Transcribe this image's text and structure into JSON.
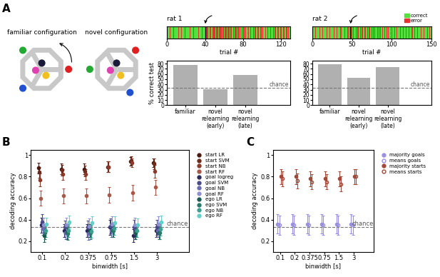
{
  "panel_labels": [
    "A",
    "B",
    "C"
  ],
  "diagrams": [
    {
      "label": "familiar configuration"
    },
    {
      "label": "novel configuration"
    }
  ],
  "chart_data": [
    {
      "type": "raster",
      "title": "rat 1",
      "x_label": "trial #",
      "n_trials": 130,
      "switch_trial": 40,
      "split_trial": 85,
      "error_trials": [
        3,
        7,
        12,
        15,
        19,
        24,
        28,
        33,
        37,
        41,
        42,
        43,
        45,
        46,
        48,
        49,
        50,
        52,
        53,
        55,
        56,
        57,
        59,
        61,
        62,
        64,
        65,
        67,
        68,
        70,
        72,
        73,
        75,
        77,
        79,
        81,
        83,
        86,
        88,
        91,
        93,
        96,
        99,
        101,
        104,
        106,
        109,
        112,
        114,
        117,
        120,
        123,
        126,
        128
      ],
      "xlim": [
        0,
        130
      ],
      "xticks": [
        0,
        40,
        80,
        120
      ],
      "series": [
        {
          "name": "correct",
          "color": "#55e040"
        },
        {
          "name": "error",
          "color": "#e83030"
        }
      ]
    },
    {
      "type": "raster",
      "title": "rat 2",
      "x_label": "trial #",
      "n_trials": 150,
      "switch_trial": 48,
      "split_trial": 98,
      "error_trials": [
        4,
        9,
        13,
        18,
        22,
        27,
        31,
        36,
        41,
        45,
        49,
        50,
        52,
        55,
        57,
        58,
        61,
        63,
        66,
        67,
        70,
        72,
        75,
        77,
        79,
        82,
        84,
        86,
        89,
        91,
        94,
        96,
        100,
        104,
        107,
        111,
        115,
        118,
        122,
        126,
        129,
        133,
        137,
        141,
        145,
        148
      ],
      "xlim": [
        0,
        150
      ],
      "xticks": [
        0,
        50,
        100,
        150
      ],
      "legend": "lower right",
      "series": [
        {
          "name": "correct",
          "color": "#55e040"
        },
        {
          "name": "error",
          "color": "#e83030"
        }
      ]
    },
    {
      "type": "bar",
      "y_label": "% correct test",
      "categories": [
        "familiar",
        "novel relearning (early)",
        "novel relearning (late)"
      ],
      "values": [
        77,
        31,
        58
      ],
      "color": "#b0b0b0",
      "ylim": [
        0,
        85
      ],
      "yticks": [
        0,
        10,
        20,
        30,
        40,
        50,
        60,
        70,
        80
      ],
      "reference_line": {
        "value": 33.3,
        "label": "chance"
      }
    },
    {
      "type": "bar",
      "categories": [
        "familiar",
        "novel relearning (early)",
        "novel relearning (late)"
      ],
      "values": [
        78,
        52,
        73
      ],
      "color": "#b0b0b0",
      "ylim": [
        0,
        85
      ],
      "yticks": [
        0,
        10,
        20,
        30,
        40,
        50,
        60,
        70,
        80
      ],
      "reference_line": {
        "value": 33.3,
        "label": "chance"
      }
    },
    {
      "type": "scatter",
      "x_label": "binwidth [s]",
      "y_label": "decoding accuracy",
      "categories": [
        "0.1",
        "0.2",
        "0.375",
        "0.75",
        "1.5",
        "3"
      ],
      "ylim": [
        0.1,
        1.05
      ],
      "yticks": [
        0.2,
        0.4,
        0.6,
        0.8,
        1
      ],
      "legend": "upper left",
      "reference_line": {
        "value": 0.33,
        "label": "chance"
      },
      "series": [
        {
          "name": "start LR",
          "color": "#4a1a10",
          "marker": "filled_circle",
          "values": [
            0.88,
            0.87,
            0.87,
            0.89,
            0.94,
            0.93
          ],
          "errors": [
            0.05,
            0.05,
            0.05,
            0.05,
            0.04,
            0.04
          ]
        },
        {
          "name": "start SVM",
          "color": "#6e2a1a",
          "marker": "filled_circle",
          "values": [
            0.84,
            0.86,
            0.85,
            0.89,
            0.95,
            0.92
          ],
          "errors": [
            0.05,
            0.05,
            0.05,
            0.05,
            0.04,
            0.05
          ]
        },
        {
          "name": "start NB",
          "color": "#8b3a2a",
          "marker": "filled_circle",
          "values": [
            0.77,
            0.82,
            0.82,
            0.89,
            0.93,
            0.85
          ],
          "errors": [
            0.06,
            0.05,
            0.05,
            0.05,
            0.04,
            0.06
          ]
        },
        {
          "name": "start RF",
          "color": "#a85848",
          "marker": "filled_circle",
          "values": [
            0.6,
            0.62,
            0.62,
            0.63,
            0.65,
            0.7
          ],
          "errors": [
            0.07,
            0.07,
            0.07,
            0.07,
            0.07,
            0.07
          ]
        },
        {
          "name": "goal logreg",
          "color": "#2a2a5a",
          "marker": "filled_circle",
          "values": [
            0.35,
            0.3,
            0.3,
            0.33,
            0.25,
            0.3
          ],
          "errors": [
            0.07,
            0.06,
            0.06,
            0.07,
            0.06,
            0.06
          ]
        },
        {
          "name": "goal SVM",
          "color": "#4a4a8a",
          "marker": "filled_circle",
          "values": [
            0.38,
            0.33,
            0.33,
            0.34,
            0.33,
            0.33
          ],
          "errors": [
            0.07,
            0.06,
            0.06,
            0.07,
            0.07,
            0.07
          ]
        },
        {
          "name": "goal NB",
          "color": "#6a6ab0",
          "marker": "filled_circle",
          "values": [
            0.32,
            0.28,
            0.27,
            0.3,
            0.28,
            0.3
          ],
          "errors": [
            0.06,
            0.06,
            0.06,
            0.06,
            0.06,
            0.06
          ]
        },
        {
          "name": "goal RF",
          "color": "#9090d0",
          "marker": "filled_circle",
          "values": [
            0.35,
            0.35,
            0.34,
            0.36,
            0.35,
            0.36
          ],
          "errors": [
            0.07,
            0.07,
            0.07,
            0.07,
            0.07,
            0.07
          ]
        },
        {
          "name": "ego LR",
          "color": "#1a5a50",
          "marker": "filled_circle",
          "values": [
            0.25,
            0.28,
            0.3,
            0.3,
            0.28,
            0.28
          ],
          "errors": [
            0.06,
            0.06,
            0.06,
            0.06,
            0.06,
            0.06
          ]
        },
        {
          "name": "ego SVM",
          "color": "#2a7a6a",
          "marker": "filled_circle",
          "values": [
            0.28,
            0.27,
            0.28,
            0.3,
            0.3,
            0.28
          ],
          "errors": [
            0.06,
            0.06,
            0.06,
            0.06,
            0.06,
            0.06
          ]
        },
        {
          "name": "ego NB",
          "color": "#3aa090",
          "marker": "filled_circle",
          "values": [
            0.3,
            0.3,
            0.29,
            0.32,
            0.3,
            0.31
          ],
          "errors": [
            0.06,
            0.06,
            0.06,
            0.06,
            0.06,
            0.06
          ]
        },
        {
          "name": "ego RF",
          "color": "#60d0c8",
          "marker": "filled_circle",
          "values": [
            0.36,
            0.38,
            0.37,
            0.37,
            0.35,
            0.38
          ],
          "errors": [
            0.06,
            0.06,
            0.06,
            0.06,
            0.06,
            0.06
          ]
        }
      ]
    },
    {
      "type": "scatter",
      "x_label": "binwidth [s]",
      "y_label": "decoding accuracy",
      "categories": [
        "0.1",
        "0.2",
        "0.375",
        "0.75",
        "1.5",
        "3"
      ],
      "ylim": [
        0.1,
        1.05
      ],
      "yticks": [
        0.2,
        0.4,
        0.6,
        0.8,
        1
      ],
      "legend": "upper left",
      "reference_line": {
        "value": 0.33,
        "label": "chance"
      },
      "series": [
        {
          "name": "majority goals",
          "color": "#9a90e0",
          "marker": "filled_circle",
          "values": [
            0.36,
            0.36,
            0.36,
            0.36,
            0.36,
            0.36
          ],
          "errors": [
            0.09,
            0.09,
            0.09,
            0.09,
            0.09,
            0.09
          ]
        },
        {
          "name": "means goals",
          "color": "#9a90e0",
          "marker": "open_circle",
          "values": [
            0.35,
            0.35,
            0.35,
            0.35,
            0.35,
            0.35
          ],
          "errors": [
            0.09,
            0.09,
            0.09,
            0.09,
            0.09,
            0.09
          ]
        },
        {
          "name": "majority starts",
          "color": "#a04a3a",
          "marker": "filled_circle",
          "values": [
            0.8,
            0.8,
            0.78,
            0.78,
            0.78,
            0.8
          ],
          "errors": [
            0.07,
            0.07,
            0.07,
            0.07,
            0.07,
            0.07
          ]
        },
        {
          "name": "means starts",
          "color": "#a04a3a",
          "marker": "open_circle",
          "values": [
            0.78,
            0.76,
            0.75,
            0.75,
            0.73,
            0.8
          ],
          "errors": [
            0.07,
            0.07,
            0.07,
            0.07,
            0.07,
            0.07
          ]
        }
      ]
    }
  ]
}
